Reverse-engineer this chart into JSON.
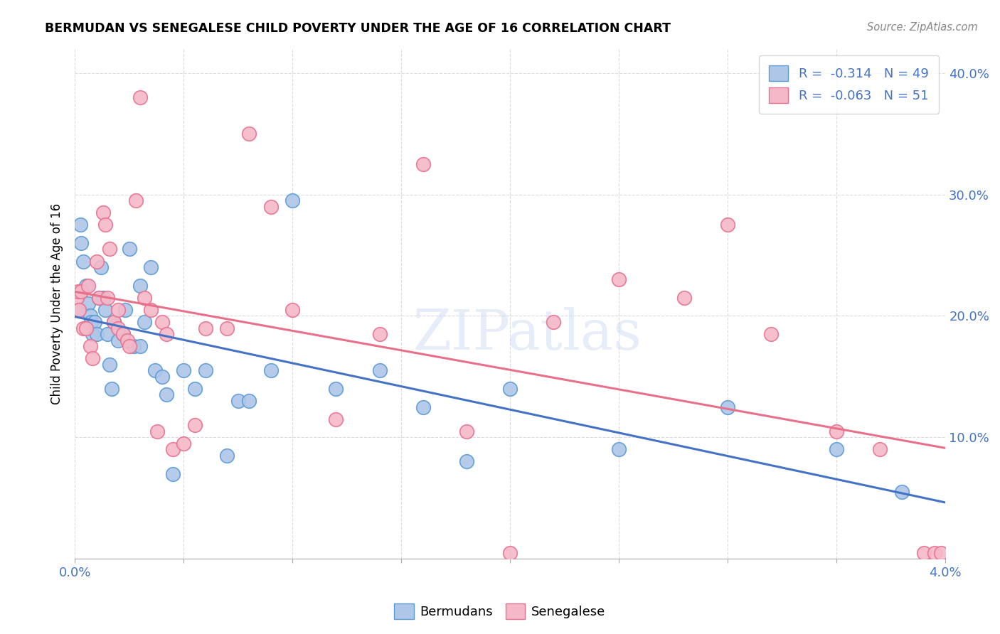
{
  "title": "BERMUDAN VS SENEGALESE CHILD POVERTY UNDER THE AGE OF 16 CORRELATION CHART",
  "source": "Source: ZipAtlas.com",
  "ylabel": "Child Poverty Under the Age of 16",
  "xlim": [
    0.0,
    0.04
  ],
  "ylim": [
    0.0,
    0.42
  ],
  "xticks": [
    0.0,
    0.005,
    0.01,
    0.015,
    0.02,
    0.025,
    0.03,
    0.035,
    0.04
  ],
  "xticklabels": [
    "0.0%",
    "",
    "",
    "",
    "",
    "",
    "",
    "",
    "4.0%"
  ],
  "yticks": [
    0.0,
    0.1,
    0.2,
    0.3,
    0.4
  ],
  "yticklabels": [
    "",
    "10.0%",
    "20.0%",
    "30.0%",
    "40.0%"
  ],
  "bermudans_color": "#aec6e8",
  "senegalese_color": "#f4b8c8",
  "bermudans_edge_color": "#5b9bd5",
  "senegalese_edge_color": "#e87090",
  "bermudans_line_color": "#4472c4",
  "senegalese_line_color": "#e8708a",
  "legend_R_bermudans": "-0.314",
  "legend_N_bermudans": "49",
  "legend_R_senegalese": "-0.063",
  "legend_N_senegalese": "51",
  "watermark": "ZIPatlas",
  "bermudans_x": [
    0.00015,
    0.00025,
    0.0003,
    0.0004,
    0.0005,
    0.0006,
    0.0007,
    0.00075,
    0.0008,
    0.0009,
    0.001,
    0.0011,
    0.0012,
    0.0013,
    0.0014,
    0.0015,
    0.0016,
    0.0017,
    0.0018,
    0.002,
    0.0022,
    0.0023,
    0.0025,
    0.0027,
    0.003,
    0.003,
    0.0032,
    0.0035,
    0.0037,
    0.004,
    0.0042,
    0.0045,
    0.005,
    0.0055,
    0.006,
    0.007,
    0.0075,
    0.008,
    0.009,
    0.01,
    0.012,
    0.014,
    0.016,
    0.018,
    0.02,
    0.025,
    0.03,
    0.035,
    0.038
  ],
  "bermudans_y": [
    0.205,
    0.275,
    0.26,
    0.245,
    0.225,
    0.21,
    0.2,
    0.195,
    0.185,
    0.195,
    0.185,
    0.215,
    0.24,
    0.215,
    0.205,
    0.185,
    0.16,
    0.14,
    0.195,
    0.18,
    0.185,
    0.205,
    0.255,
    0.175,
    0.175,
    0.225,
    0.195,
    0.24,
    0.155,
    0.15,
    0.135,
    0.07,
    0.155,
    0.14,
    0.155,
    0.085,
    0.13,
    0.13,
    0.155,
    0.295,
    0.14,
    0.155,
    0.125,
    0.08,
    0.14,
    0.09,
    0.125,
    0.09,
    0.055
  ],
  "senegalese_x": [
    0.0001,
    0.00015,
    0.0002,
    0.0003,
    0.0004,
    0.0005,
    0.0006,
    0.0007,
    0.0008,
    0.001,
    0.0011,
    0.0013,
    0.0014,
    0.0015,
    0.0016,
    0.0018,
    0.002,
    0.002,
    0.0022,
    0.0024,
    0.0025,
    0.0028,
    0.003,
    0.0032,
    0.0035,
    0.0038,
    0.004,
    0.0042,
    0.0045,
    0.005,
    0.0055,
    0.006,
    0.007,
    0.008,
    0.009,
    0.01,
    0.012,
    0.014,
    0.016,
    0.018,
    0.02,
    0.022,
    0.025,
    0.028,
    0.03,
    0.032,
    0.035,
    0.037,
    0.039,
    0.0395,
    0.0398
  ],
  "senegalese_y": [
    0.215,
    0.22,
    0.205,
    0.22,
    0.19,
    0.19,
    0.225,
    0.175,
    0.165,
    0.245,
    0.215,
    0.285,
    0.275,
    0.215,
    0.255,
    0.195,
    0.19,
    0.205,
    0.185,
    0.18,
    0.175,
    0.295,
    0.38,
    0.215,
    0.205,
    0.105,
    0.195,
    0.185,
    0.09,
    0.095,
    0.11,
    0.19,
    0.19,
    0.35,
    0.29,
    0.205,
    0.115,
    0.185,
    0.325,
    0.105,
    0.005,
    0.195,
    0.23,
    0.215,
    0.275,
    0.185,
    0.105,
    0.09,
    0.005,
    0.005,
    0.005
  ]
}
